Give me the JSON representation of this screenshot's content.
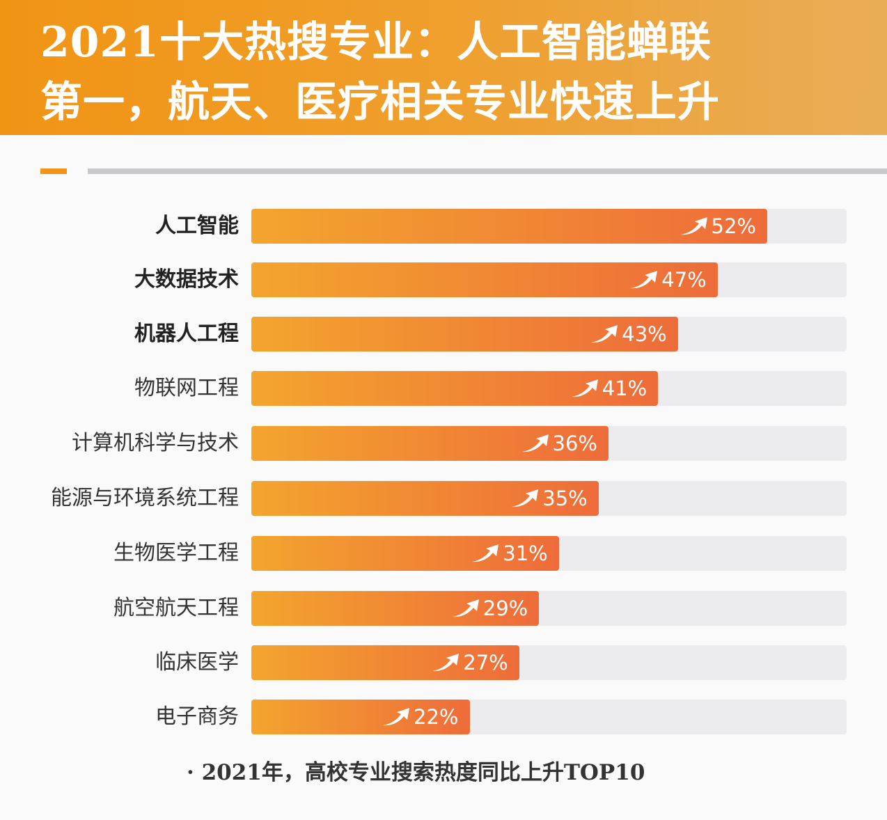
{
  "header": {
    "title_line1": "2021十大热搜专业：人工智能蝉联",
    "title_line2": "第一，航天、医疗相关专业快速上升"
  },
  "colors": {
    "header": "#f19414",
    "bar_start": "#f3a52e",
    "bar_end": "#ee6c3a",
    "track": "#ececef"
  },
  "chart_data": {
    "type": "bar",
    "orientation": "horizontal",
    "categories": [
      "人工智能",
      "大数据技术",
      "机器人工程",
      "物联网工程",
      "计算机科学与技术",
      "能源与环境系统工程",
      "生物医学工程",
      "航空航天工程",
      "临床医学",
      "电子商务"
    ],
    "values": [
      52,
      47,
      43,
      41,
      36,
      35,
      31,
      29,
      27,
      22
    ],
    "data_labels": [
      "52%",
      "47%",
      "43%",
      "41%",
      "36%",
      "35%",
      "31%",
      "29%",
      "27%",
      "22%"
    ],
    "bold_categories": [
      0,
      1,
      2
    ],
    "label_icon": "trend-up-arrow-icon",
    "xlim": [
      0,
      60
    ],
    "grid": false,
    "note": "· 2021年，高校专业搜索热度同比上升TOP10"
  }
}
